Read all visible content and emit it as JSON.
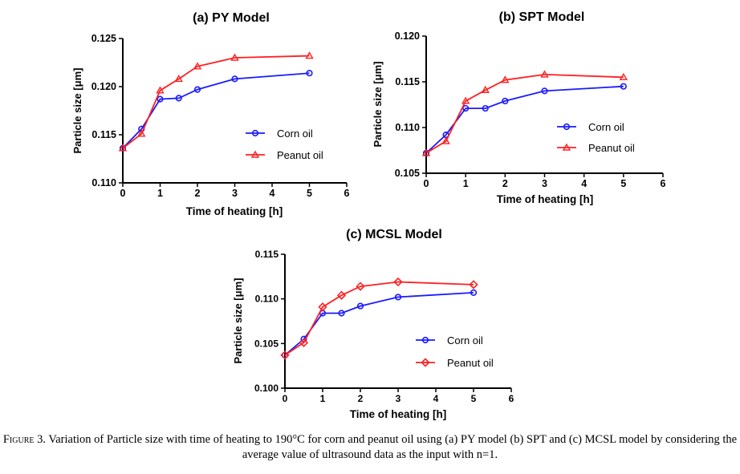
{
  "chart_data": [
    {
      "type": "line",
      "title": "(a) PY Model",
      "xlabel": "Time of heating [h]",
      "ylabel": "Particle size [μm]",
      "xlim": [
        0,
        6
      ],
      "ylim": [
        0.11,
        0.125
      ],
      "xticks": [
        0,
        1,
        2,
        3,
        4,
        5,
        6
      ],
      "xtick_labels": [
        "0",
        "1",
        "2",
        "3",
        "4",
        "5",
        "6"
      ],
      "yticks": [
        0.11,
        0.115,
        0.12,
        0.125
      ],
      "ytick_labels": [
        "0.110",
        "0.115",
        "0.120",
        "0.125"
      ],
      "legend_position": "center-right",
      "x": [
        0,
        0.5,
        1,
        1.5,
        2,
        3,
        5
      ],
      "series": [
        {
          "name": "Corn oil",
          "color": "#1a1aff",
          "marker": "circle",
          "values": [
            0.1136,
            0.1156,
            0.1187,
            0.1188,
            0.1197,
            0.1208,
            0.1214
          ]
        },
        {
          "name": "Peanut oil",
          "color": "#ff2020",
          "marker": "triangle",
          "values": [
            0.1136,
            0.1151,
            0.1196,
            0.1208,
            0.1221,
            0.123,
            0.1232
          ]
        }
      ]
    },
    {
      "type": "line",
      "title": "(b) SPT Model",
      "xlabel": "Time of heating [h]",
      "ylabel": "Particle size [μm]",
      "xlim": [
        0,
        6
      ],
      "ylim": [
        0.105,
        0.12
      ],
      "xticks": [
        0,
        1,
        2,
        3,
        4,
        5,
        6
      ],
      "xtick_labels": [
        "0",
        "1",
        "2",
        "3",
        "4",
        "5",
        "6"
      ],
      "yticks": [
        0.105,
        0.11,
        0.115,
        0.12
      ],
      "ytick_labels": [
        "0.105",
        "0.110",
        "0.115",
        "0.120"
      ],
      "legend_position": "center-right",
      "x": [
        0,
        0.5,
        1,
        1.5,
        2,
        3,
        5
      ],
      "series": [
        {
          "name": "Corn oil",
          "color": "#1a1aff",
          "marker": "circle",
          "values": [
            0.1072,
            0.1092,
            0.1121,
            0.1121,
            0.1129,
            0.114,
            0.1145
          ]
        },
        {
          "name": "Peanut oil",
          "color": "#ff2020",
          "marker": "triangle",
          "values": [
            0.1072,
            0.1085,
            0.1129,
            0.1141,
            0.1152,
            0.1158,
            0.1155
          ]
        }
      ]
    },
    {
      "type": "line",
      "title": "(c) MCSL Model",
      "xlabel": "Time of heating [h]",
      "ylabel": "Particle size [μm]",
      "xlim": [
        0,
        6
      ],
      "ylim": [
        0.1,
        0.115
      ],
      "xticks": [
        0,
        1,
        2,
        3,
        4,
        5,
        6
      ],
      "xtick_labels": [
        "0",
        "1",
        "2",
        "3",
        "4",
        "5",
        "6"
      ],
      "yticks": [
        0.1,
        0.105,
        0.11,
        0.115
      ],
      "ytick_labels": [
        "0.100",
        "0.105",
        "0.110",
        "0.115"
      ],
      "legend_position": "center-right",
      "x": [
        0,
        0.5,
        1,
        1.5,
        2,
        3,
        5
      ],
      "series": [
        {
          "name": "Corn oil",
          "color": "#1a1aff",
          "marker": "circle",
          "values": [
            0.1037,
            0.1055,
            0.1084,
            0.1084,
            0.1092,
            0.1102,
            0.1107
          ]
        },
        {
          "name": "Peanut oil",
          "color": "#ff2020",
          "marker": "diamond",
          "values": [
            0.1037,
            0.1051,
            0.1091,
            0.1104,
            0.1114,
            0.1119,
            0.1116
          ]
        }
      ]
    }
  ],
  "caption": {
    "label": "Figure 3.",
    "text": " Variation of Particle size with time of heating to 190°C for corn and peanut oil using (a) PY model (b) SPT and (c) MCSL model by considering the average value of ultrasound data as the input with n=1."
  }
}
